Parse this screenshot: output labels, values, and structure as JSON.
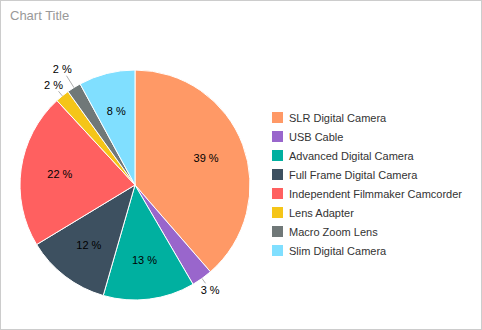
{
  "chart_data": {
    "type": "pie",
    "title": "Chart Title",
    "categories": [
      "SLR Digital Camera",
      "USB Cable",
      "Advanced Digital Camera",
      "Full Frame Digital Camera",
      "Independent Filmmaker Camcorder",
      "Lens Adapter",
      "Macro Zoom Lens",
      "Slim Digital Camera"
    ],
    "values": [
      39,
      3,
      13,
      12,
      22,
      2,
      2,
      8
    ],
    "value_labels": [
      "39 %",
      "3 %",
      "13 %",
      "12 %",
      "22 %",
      "2 %",
      "2 %",
      "8 %"
    ],
    "colors": [
      "#FF9966",
      "#9966CC",
      "#00B0A0",
      "#3D5060",
      "#FF6060",
      "#F5C518",
      "#707878",
      "#80DFFF"
    ],
    "data_labels": true,
    "legend": "right"
  }
}
